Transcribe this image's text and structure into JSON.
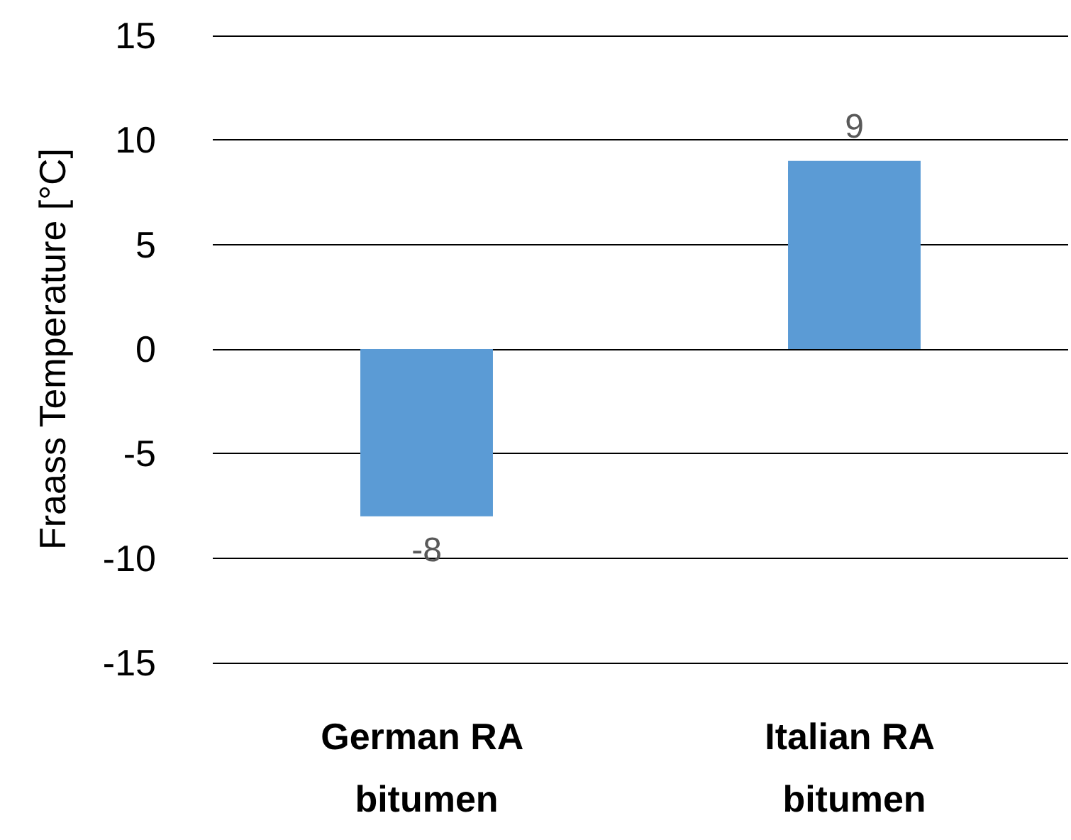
{
  "chart_data": {
    "type": "bar",
    "ylabel": "Fraass Temperature [°C]",
    "categories": [
      "German RA bitumen",
      "Italian RA bitumen"
    ],
    "values": [
      -8,
      9
    ],
    "color": "#5b9bd5",
    "ylim": [
      -15,
      15
    ],
    "yticks": [
      -15,
      -10,
      -5,
      0,
      5,
      10,
      15
    ],
    "grid": "y",
    "data_labels": true
  }
}
